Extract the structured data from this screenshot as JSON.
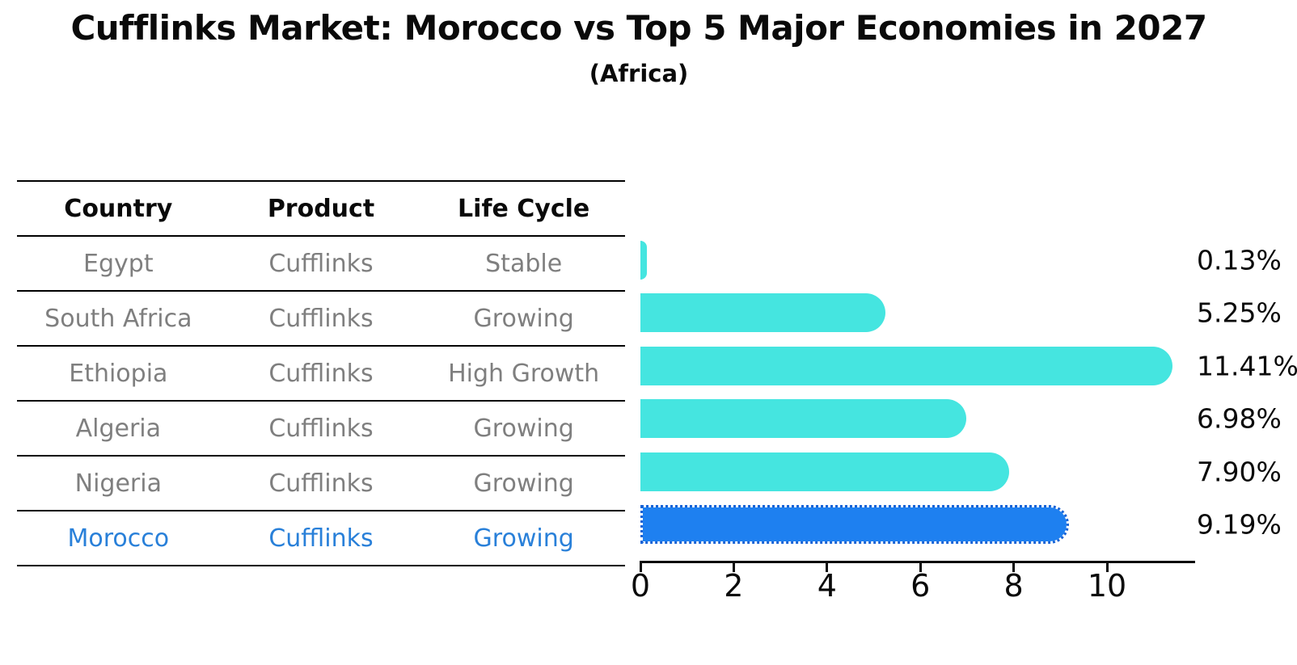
{
  "title": "Cufflinks Market: Morocco vs Top 5 Major Economies in 2027",
  "subtitle": "(Africa)",
  "table": {
    "headers": [
      "Country",
      "Product",
      "Life Cycle"
    ],
    "rows": [
      {
        "country": "Egypt",
        "product": "Cufflinks",
        "life_cycle": "Stable",
        "highlight": false
      },
      {
        "country": "South Africa",
        "product": "Cufflinks",
        "life_cycle": "Growing",
        "highlight": false
      },
      {
        "country": "Ethiopia",
        "product": "Cufflinks",
        "life_cycle": "High Growth",
        "highlight": false
      },
      {
        "country": "Algeria",
        "product": "Cufflinks",
        "life_cycle": "Growing",
        "highlight": false
      },
      {
        "country": "Nigeria",
        "product": "Cufflinks",
        "life_cycle": "Growing",
        "highlight": true
      }
    ],
    "highlight_row": {
      "country": "Morocco",
      "product": "Cufflinks",
      "life_cycle": "Growing"
    }
  },
  "chart_data": {
    "type": "bar",
    "orientation": "horizontal",
    "title": "Cufflinks Market: Morocco vs Top 5 Major Economies in 2027",
    "subtitle": "(Africa)",
    "categories": [
      "Egypt",
      "South Africa",
      "Ethiopia",
      "Algeria",
      "Nigeria",
      "Morocco"
    ],
    "values": [
      0.13,
      5.25,
      11.41,
      6.98,
      7.9,
      9.19
    ],
    "value_labels": [
      "0.13%",
      "5.25%",
      "11.41%",
      "6.98%",
      "7.90%",
      "9.19%"
    ],
    "xlabel": "",
    "ylabel": "",
    "xlim": [
      0,
      11.87
    ],
    "xticks": [
      0,
      2,
      4,
      6,
      8,
      10
    ],
    "grid": false,
    "legend": false,
    "highlight_index": 5,
    "colors": {
      "bar": "#45e5e0",
      "highlight_bar": "#1e80f0",
      "highlight_border": "#1663d6",
      "highlight_text": "#2980d9",
      "row_text": "#7f7f7f",
      "axis": "#0a0a0a"
    }
  }
}
